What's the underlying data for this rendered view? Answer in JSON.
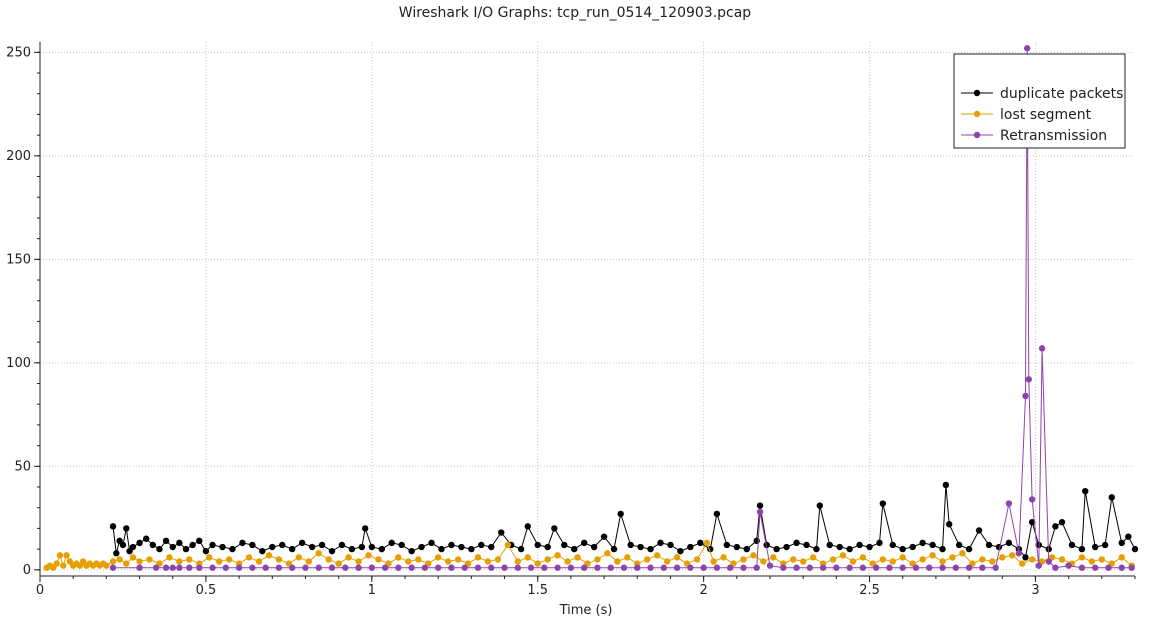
{
  "chart_data": {
    "type": "line",
    "title": "Wireshark I/O Graphs: tcp_run_0514_120903.pcap",
    "xlabel": "Time (s)",
    "ylabel": "",
    "xlim": [
      0,
      3.3
    ],
    "ylim": [
      -3,
      255
    ],
    "xticks": [
      0,
      0.5,
      1,
      1.5,
      2,
      2.5,
      3
    ],
    "xtick_labels": [
      "0",
      "0.5",
      "1",
      "1.5",
      "2",
      "2.5",
      "3"
    ],
    "yticks": [
      0,
      50,
      100,
      150,
      200,
      250
    ],
    "ytick_labels": [
      "0",
      "50",
      "100",
      "150",
      "200",
      "250"
    ],
    "grid": true,
    "legend_position": "top-right",
    "series": [
      {
        "name": "duplicate packets",
        "color": "#000000",
        "x": [
          0.22,
          0.23,
          0.24,
          0.25,
          0.26,
          0.27,
          0.28,
          0.3,
          0.32,
          0.34,
          0.36,
          0.38,
          0.4,
          0.42,
          0.44,
          0.46,
          0.48,
          0.5,
          0.52,
          0.55,
          0.58,
          0.61,
          0.64,
          0.67,
          0.7,
          0.73,
          0.76,
          0.79,
          0.82,
          0.85,
          0.88,
          0.91,
          0.94,
          0.97,
          0.98,
          1.0,
          1.03,
          1.06,
          1.09,
          1.12,
          1.15,
          1.18,
          1.21,
          1.24,
          1.27,
          1.3,
          1.33,
          1.36,
          1.39,
          1.42,
          1.45,
          1.47,
          1.5,
          1.53,
          1.55,
          1.58,
          1.61,
          1.64,
          1.67,
          1.7,
          1.73,
          1.75,
          1.78,
          1.81,
          1.84,
          1.87,
          1.9,
          1.93,
          1.96,
          1.99,
          2.02,
          2.04,
          2.07,
          2.1,
          2.13,
          2.16,
          2.17,
          2.19,
          2.22,
          2.25,
          2.28,
          2.31,
          2.34,
          2.35,
          2.38,
          2.41,
          2.44,
          2.47,
          2.5,
          2.53,
          2.54,
          2.57,
          2.6,
          2.63,
          2.66,
          2.69,
          2.72,
          2.73,
          2.74,
          2.77,
          2.8,
          2.83,
          2.86,
          2.89,
          2.92,
          2.95,
          2.97,
          2.99,
          3.01,
          3.04,
          3.06,
          3.08,
          3.11,
          3.14,
          3.15,
          3.18,
          3.21,
          3.23,
          3.26,
          3.28,
          3.3
        ],
        "values": [
          21,
          8,
          14,
          12,
          20,
          9,
          11,
          13,
          15,
          12,
          10,
          14,
          11,
          13,
          10,
          12,
          14,
          9,
          12,
          11,
          10,
          13,
          12,
          9,
          11,
          12,
          10,
          13,
          11,
          12,
          9,
          12,
          10,
          11,
          20,
          11,
          10,
          13,
          12,
          9,
          11,
          13,
          10,
          12,
          11,
          10,
          12,
          11,
          18,
          12,
          10,
          21,
          12,
          11,
          20,
          12,
          10,
          13,
          11,
          16,
          10,
          27,
          12,
          11,
          10,
          13,
          12,
          9,
          11,
          13,
          10,
          27,
          12,
          11,
          10,
          14,
          31,
          12,
          10,
          11,
          13,
          12,
          10,
          31,
          12,
          11,
          10,
          12,
          11,
          13,
          32,
          12,
          10,
          11,
          13,
          12,
          10,
          41,
          22,
          12,
          10,
          19,
          12,
          11,
          13,
          10,
          6,
          23,
          12,
          10,
          21,
          23,
          12,
          10,
          38,
          11,
          12,
          35,
          13,
          16,
          10
        ]
      },
      {
        "name": "lost segment",
        "color": "#e69f00",
        "x": [
          0.02,
          0.03,
          0.04,
          0.05,
          0.06,
          0.07,
          0.08,
          0.09,
          0.1,
          0.11,
          0.12,
          0.13,
          0.14,
          0.15,
          0.16,
          0.17,
          0.18,
          0.19,
          0.2,
          0.22,
          0.24,
          0.26,
          0.28,
          0.3,
          0.33,
          0.36,
          0.39,
          0.42,
          0.45,
          0.48,
          0.51,
          0.54,
          0.57,
          0.6,
          0.63,
          0.66,
          0.69,
          0.72,
          0.75,
          0.78,
          0.81,
          0.84,
          0.87,
          0.9,
          0.93,
          0.96,
          0.99,
          1.02,
          1.05,
          1.08,
          1.11,
          1.14,
          1.17,
          1.2,
          1.23,
          1.26,
          1.29,
          1.32,
          1.35,
          1.38,
          1.41,
          1.44,
          1.47,
          1.5,
          1.53,
          1.56,
          1.59,
          1.62,
          1.65,
          1.68,
          1.71,
          1.74,
          1.77,
          1.8,
          1.83,
          1.86,
          1.89,
          1.92,
          1.95,
          1.98,
          2.01,
          2.03,
          2.06,
          2.09,
          2.12,
          2.15,
          2.18,
          2.21,
          2.24,
          2.27,
          2.3,
          2.33,
          2.36,
          2.39,
          2.42,
          2.45,
          2.48,
          2.51,
          2.54,
          2.57,
          2.6,
          2.63,
          2.66,
          2.69,
          2.72,
          2.75,
          2.78,
          2.81,
          2.84,
          2.87,
          2.9,
          2.93,
          2.96,
          2.99,
          3.02,
          3.05,
          3.08,
          3.11,
          3.14,
          3.17,
          3.2,
          3.23,
          3.26,
          3.29
        ],
        "values": [
          1,
          2,
          1,
          3,
          7,
          2,
          7,
          4,
          2,
          3,
          2,
          4,
          2,
          3,
          2,
          3,
          2,
          3,
          2,
          4,
          5,
          3,
          6,
          4,
          5,
          3,
          6,
          4,
          5,
          3,
          6,
          4,
          5,
          3,
          6,
          4,
          7,
          5,
          3,
          6,
          4,
          8,
          5,
          3,
          6,
          4,
          7,
          5,
          3,
          6,
          4,
          5,
          3,
          6,
          4,
          5,
          3,
          6,
          4,
          5,
          12,
          4,
          6,
          3,
          5,
          7,
          4,
          6,
          3,
          5,
          8,
          4,
          6,
          3,
          5,
          7,
          4,
          6,
          3,
          5,
          13,
          4,
          6,
          3,
          5,
          7,
          4,
          6,
          3,
          5,
          4,
          6,
          3,
          5,
          7,
          4,
          6,
          3,
          5,
          4,
          6,
          3,
          5,
          7,
          4,
          6,
          8,
          3,
          5,
          4,
          6,
          7,
          3,
          5,
          4,
          6,
          5,
          3,
          6,
          4,
          5,
          3,
          6,
          2
        ]
      },
      {
        "name": "Retransmission",
        "color": "#8e44ad",
        "x": [
          0.22,
          0.3,
          0.35,
          0.38,
          0.4,
          0.42,
          0.45,
          0.48,
          0.52,
          0.56,
          0.6,
          0.64,
          0.68,
          0.72,
          0.76,
          0.8,
          0.84,
          0.88,
          0.92,
          0.96,
          1.0,
          1.04,
          1.08,
          1.12,
          1.16,
          1.2,
          1.24,
          1.28,
          1.32,
          1.36,
          1.4,
          1.44,
          1.48,
          1.52,
          1.56,
          1.6,
          1.64,
          1.68,
          1.72,
          1.76,
          1.8,
          1.84,
          1.88,
          1.92,
          1.96,
          2.0,
          2.04,
          2.08,
          2.12,
          2.16,
          2.17,
          2.2,
          2.24,
          2.28,
          2.32,
          2.36,
          2.4,
          2.44,
          2.48,
          2.52,
          2.56,
          2.6,
          2.64,
          2.68,
          2.72,
          2.76,
          2.8,
          2.84,
          2.88,
          2.92,
          2.95,
          2.97,
          2.975,
          2.98,
          2.99,
          3.01,
          3.02,
          3.04,
          3.06,
          3.1,
          3.14,
          3.18,
          3.22,
          3.26,
          3.29
        ],
        "values": [
          1,
          1,
          1,
          1,
          1,
          1,
          1,
          1,
          1,
          1,
          1,
          1,
          1,
          1,
          1,
          1,
          1,
          1,
          1,
          1,
          1,
          1,
          1,
          1,
          1,
          1,
          1,
          1,
          1,
          1,
          1,
          1,
          1,
          1,
          1,
          1,
          1,
          1,
          1,
          1,
          1,
          1,
          1,
          1,
          1,
          1,
          1,
          1,
          1,
          1,
          28,
          2,
          1,
          1,
          1,
          1,
          1,
          1,
          1,
          1,
          1,
          1,
          1,
          1,
          1,
          1,
          1,
          1,
          1,
          32,
          8,
          84,
          252,
          92,
          34,
          2,
          107,
          4,
          1,
          2,
          1,
          1,
          1,
          1,
          1
        ]
      }
    ]
  }
}
